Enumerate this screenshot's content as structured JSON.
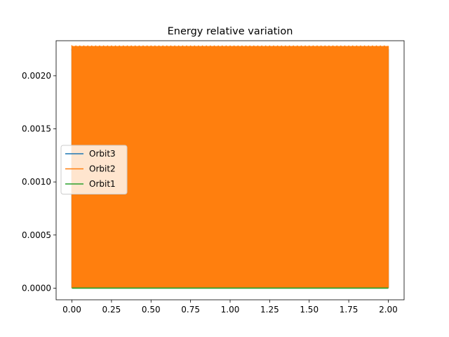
{
  "chart_data": {
    "type": "line",
    "title": "Energy relative variation",
    "xlabel": "",
    "ylabel": "",
    "xlim": [
      -0.1,
      2.1
    ],
    "ylim": [
      -0.00011,
      0.00233
    ],
    "xticks": [
      0.0,
      0.25,
      0.5,
      0.75,
      1.0,
      1.25,
      1.5,
      1.75,
      2.0
    ],
    "xtick_labels": [
      "0.00",
      "0.25",
      "0.50",
      "0.75",
      "1.00",
      "1.25",
      "1.50",
      "1.75",
      "2.00"
    ],
    "yticks": [
      0.0,
      0.0005,
      0.001,
      0.0015,
      0.002
    ],
    "ytick_labels": [
      "0.0000",
      "0.0005",
      "0.0010",
      "0.0015",
      "0.0020"
    ],
    "grid": false,
    "legend": {
      "placement": "center-left",
      "entries": [
        "Orbit3",
        "Orbit2",
        "Orbit1"
      ]
    },
    "series": [
      {
        "name": "Orbit3",
        "color": "#1f77b4",
        "x_range": [
          0.0,
          2.0
        ],
        "min": 0.0,
        "max": 0.00225,
        "style": "dense-oscillation"
      },
      {
        "name": "Orbit2",
        "color": "#ff7f0e",
        "x_range": [
          0.0,
          2.0
        ],
        "min": 0.0,
        "max": 0.00228,
        "style": "dense-oscillation"
      },
      {
        "name": "Orbit1",
        "color": "#2ca02c",
        "x_range": [
          0.0,
          2.0
        ],
        "min": 0.0,
        "max": 5e-07,
        "style": "flat"
      }
    ]
  }
}
